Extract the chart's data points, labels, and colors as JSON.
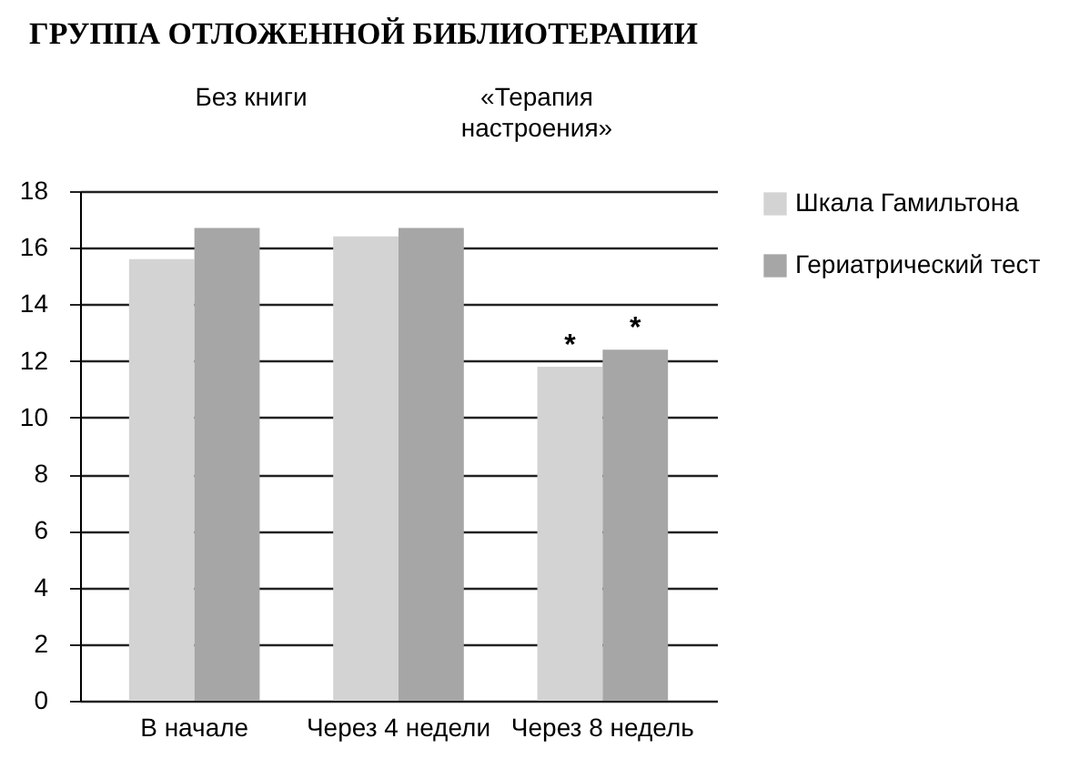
{
  "chart_data": {
    "type": "bar",
    "title": "ГРУППА ОТЛОЖЕННОЙ БИБЛИОТЕРАПИИ",
    "categories": [
      "В начале",
      "Через 4 недели",
      "Через 8 недель"
    ],
    "series": [
      {
        "name": "Шкала Гамильтона",
        "color": "#d3d3d3",
        "values": [
          15.6,
          16.4,
          11.8
        ]
      },
      {
        "name": "Гериатрический тест",
        "color": "#a6a6a6",
        "values": [
          16.7,
          16.7,
          12.4
        ]
      }
    ],
    "ylim": [
      0,
      18
    ],
    "yticks": [
      0,
      2,
      4,
      6,
      8,
      10,
      12,
      14,
      16,
      18
    ],
    "grid": "y",
    "legend": "right",
    "annotations": [
      "Без книги",
      "«Терапия настроения»",
      {
        "text": "*",
        "x": "Через 8 недель",
        "y": 11.8
      },
      {
        "text": "*",
        "x": "Через 8 недель",
        "y": 12.4
      }
    ]
  }
}
